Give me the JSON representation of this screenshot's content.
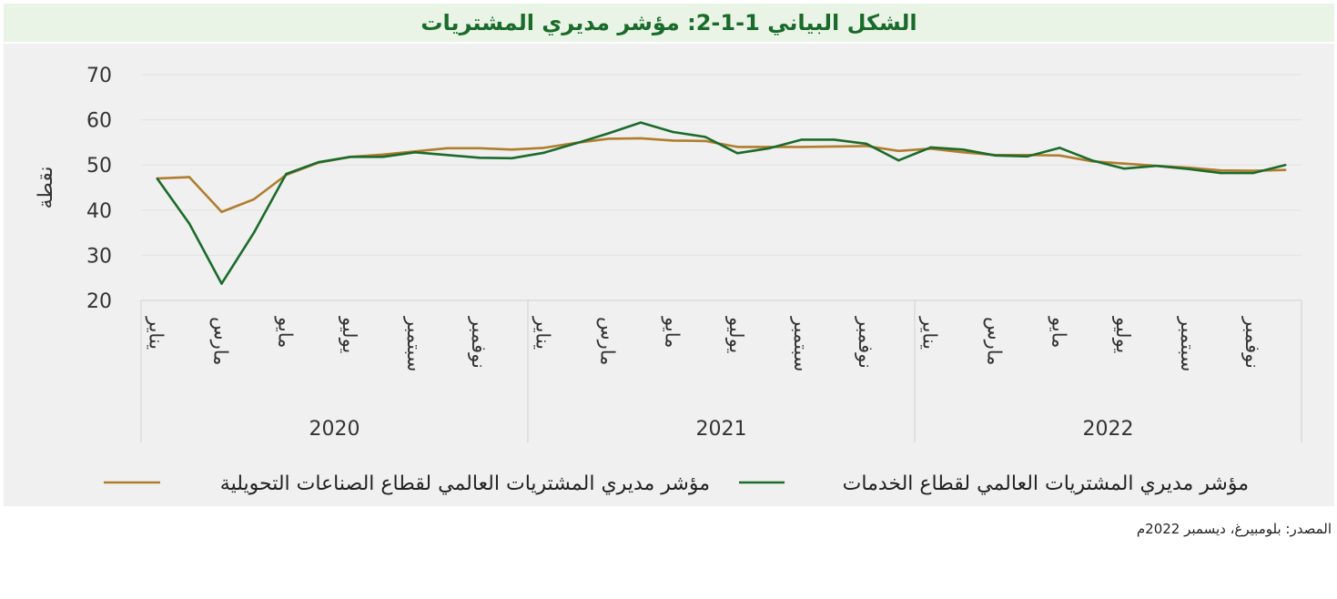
{
  "title": "الشكل البياني 1-1-2: مؤشر مديري المشتريات",
  "source": "المصدر: بلومبيرغ، ديسمبر 2022م",
  "chart_data": {
    "type": "line",
    "ylabel": "نقطة",
    "ylim": [
      20,
      70
    ],
    "yticks": [
      20,
      30,
      40,
      50,
      60,
      70
    ],
    "grid": true,
    "legend_position": "bottom",
    "month_labels": [
      "يناير",
      "مارس",
      "مايو",
      "يوليو",
      "سبتمبر",
      "نوفمبر"
    ],
    "years": [
      "2020",
      "2021",
      "2022"
    ],
    "x": [
      "2020-01",
      "2020-02",
      "2020-03",
      "2020-04",
      "2020-05",
      "2020-06",
      "2020-07",
      "2020-08",
      "2020-09",
      "2020-10",
      "2020-11",
      "2020-12",
      "2021-01",
      "2021-02",
      "2021-03",
      "2021-04",
      "2021-05",
      "2021-06",
      "2021-07",
      "2021-08",
      "2021-09",
      "2021-10",
      "2021-11",
      "2021-12",
      "2022-01",
      "2022-02",
      "2022-03",
      "2022-04",
      "2022-05",
      "2022-06",
      "2022-07",
      "2022-08",
      "2022-09",
      "2022-10",
      "2022-11",
      "2022-12"
    ],
    "series": [
      {
        "name": "مؤشر مديري المشتريات العالمي لقطاع الصناعات التحويلية",
        "color": "#b07d2e",
        "values": [
          47.0,
          47.3,
          39.6,
          42.4,
          47.8,
          50.5,
          51.8,
          52.3,
          53.0,
          53.7,
          53.7,
          53.4,
          53.8,
          54.9,
          55.8,
          55.9,
          55.4,
          55.3,
          54.0,
          54.0,
          54.0,
          54.1,
          54.2,
          53.1,
          53.6,
          52.8,
          52.2,
          52.2,
          52.1,
          50.8,
          50.3,
          49.8,
          49.4,
          48.8,
          48.7,
          48.9
        ]
      },
      {
        "name": "مؤشر مديري المشتريات العالمي لقطاع الخدمات",
        "color": "#1b6b2a",
        "values": [
          47.0,
          37.0,
          23.7,
          35.0,
          48.0,
          50.6,
          51.8,
          51.8,
          52.8,
          52.2,
          51.6,
          51.5,
          52.7,
          54.8,
          57.0,
          59.4,
          57.3,
          56.2,
          52.6,
          53.7,
          55.6,
          55.6,
          54.7,
          51.0,
          53.9,
          53.4,
          52.1,
          51.9,
          53.8,
          51.0,
          49.2,
          49.8,
          49.1,
          48.2,
          48.2,
          50.0
        ]
      }
    ]
  }
}
